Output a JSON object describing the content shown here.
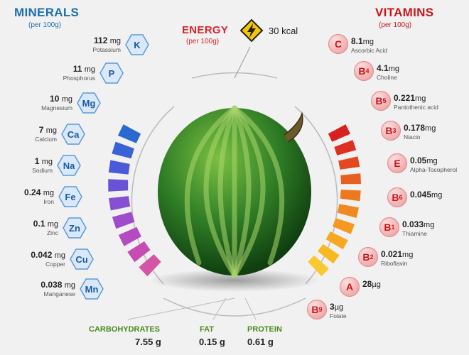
{
  "minerals": {
    "title": "MINERALS",
    "subtitle": "(per 100g)",
    "items": [
      {
        "symbol": "K",
        "amount": "112",
        "unit": "mg",
        "name": "Potassium"
      },
      {
        "symbol": "P",
        "amount": "11",
        "unit": "mg",
        "name": "Phosphorus"
      },
      {
        "symbol": "Mg",
        "amount": "10",
        "unit": "mg",
        "name": "Magnesium"
      },
      {
        "symbol": "Ca",
        "amount": "7",
        "unit": "mg",
        "name": "Calcium"
      },
      {
        "symbol": "Na",
        "amount": "1",
        "unit": "mg",
        "name": "Sodium"
      },
      {
        "symbol": "Fe",
        "amount": "0.24",
        "unit": "mg",
        "name": "Iron"
      },
      {
        "symbol": "Zn",
        "amount": "0.1",
        "unit": "mg",
        "name": "Zinc"
      },
      {
        "symbol": "Cu",
        "amount": "0.042",
        "unit": "mg",
        "name": "Copper"
      },
      {
        "symbol": "Mn",
        "amount": "0.038",
        "unit": "mg",
        "name": "Manganese"
      }
    ]
  },
  "vitamins": {
    "title": "VITAMINS",
    "subtitle": "(per 100g)",
    "items": [
      {
        "letter": "C",
        "sub": "",
        "amount": "8.1",
        "unit": "mg",
        "name": "Ascorbic Acid"
      },
      {
        "letter": "B",
        "sub": "4",
        "amount": "4.1",
        "unit": "mg",
        "name": "Choline"
      },
      {
        "letter": "B",
        "sub": "5",
        "amount": "0.221",
        "unit": "mg",
        "name": "Pantothenic acid"
      },
      {
        "letter": "B",
        "sub": "3",
        "amount": "0.178",
        "unit": "mg",
        "name": "Niacin"
      },
      {
        "letter": "E",
        "sub": "",
        "amount": "0.05",
        "unit": "mg",
        "name": "Alpha-Tocopherol"
      },
      {
        "letter": "B",
        "sub": "6",
        "amount": "0.045",
        "unit": "mg",
        "name": ""
      },
      {
        "letter": "B",
        "sub": "1",
        "amount": "0.033",
        "unit": "mg",
        "name": "Thiamine"
      },
      {
        "letter": "B",
        "sub": "2",
        "amount": "0.021",
        "unit": "mg",
        "name": "Riboflavin"
      },
      {
        "letter": "A",
        "sub": "",
        "amount": "28",
        "unit": "µg",
        "name": ""
      },
      {
        "letter": "B",
        "sub": "9",
        "amount": "3",
        "unit": "µg",
        "name": "Folate"
      }
    ]
  },
  "energy": {
    "label": "ENERGY",
    "subtitle": "(per 100g)",
    "value": "30 kcal"
  },
  "nutrients": [
    {
      "label": "CARBOHYDRATES",
      "value": "7.55 g"
    },
    {
      "label": "FAT",
      "value": "0.15 g"
    },
    {
      "label": "PROTEIN",
      "value": "0.61 g"
    }
  ],
  "colors": {
    "minerals_title": "#1e6fb0",
    "vitamins_title": "#c8171b",
    "energy_title": "#d9242a",
    "nutrient_label": "#4a8a1a",
    "mineral_bars": [
      "#2a6ad0",
      "#3a62d6",
      "#4a5ad8",
      "#6a52d6",
      "#8650d2",
      "#9e4ccc",
      "#b64ac2",
      "#c64cb4",
      "#d654a6"
    ],
    "vitamin_bars": [
      "#d92020",
      "#de3020",
      "#e34820",
      "#e86020",
      "#ec7820",
      "#f08a20",
      "#f49820",
      "#f7a820",
      "#f9b820",
      "#fbc830"
    ]
  },
  "icons": {
    "energy": "lightning-bolt-icon",
    "fruit": "watermelon-image"
  }
}
